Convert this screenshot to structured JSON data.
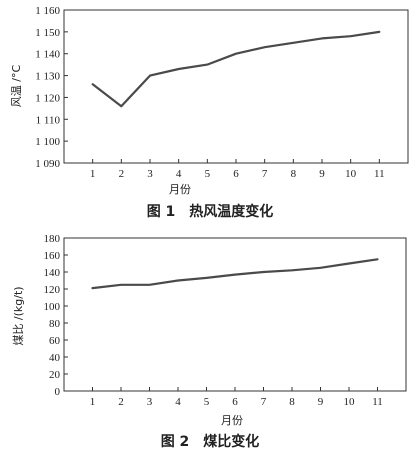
{
  "chart_data": [
    {
      "type": "line",
      "caption": "图 1　热风温度变化",
      "xlabel": "月份",
      "ylabel": "风温 /°C",
      "x": [
        1,
        2,
        3,
        4,
        5,
        6,
        7,
        8,
        9,
        10,
        11
      ],
      "x_ticks": [
        "1",
        "2",
        "3",
        "4",
        "5",
        "6",
        "7",
        "8",
        "9",
        "10",
        "11"
      ],
      "series": [
        {
          "values": [
            1126,
            1116,
            1130,
            1133,
            1135,
            1140,
            1143,
            1145,
            1147,
            1148,
            1150
          ]
        }
      ],
      "ylim": [
        1090,
        1160
      ],
      "y_ticks": [
        "1 090",
        "1 100",
        "1 110",
        "1 120",
        "1 130",
        "1 140",
        "1 150",
        "1 160"
      ],
      "y_tick_values": [
        1090,
        1100,
        1110,
        1120,
        1130,
        1140,
        1150,
        1160
      ],
      "grid": false,
      "line_color": "#4a4a4a",
      "frame_color": "#333333"
    },
    {
      "type": "line",
      "caption": "图 2　煤比变化",
      "xlabel": "月份",
      "ylabel": "煤比 /(kg/t)",
      "x": [
        1,
        2,
        3,
        4,
        5,
        6,
        7,
        8,
        9,
        10,
        11
      ],
      "x_ticks": [
        "1",
        "2",
        "3",
        "4",
        "5",
        "6",
        "7",
        "8",
        "9",
        "10",
        "11"
      ],
      "series": [
        {
          "values": [
            121,
            125,
            125,
            130,
            133,
            137,
            140,
            142,
            145,
            150,
            155
          ]
        }
      ],
      "ylim": [
        0,
        180
      ],
      "y_ticks": [
        "0",
        "20",
        "40",
        "60",
        "80",
        "100",
        "120",
        "140",
        "160",
        "180"
      ],
      "y_tick_values": [
        0,
        20,
        40,
        60,
        80,
        100,
        120,
        140,
        160,
        180
      ],
      "grid": false,
      "line_color": "#4a4a4a",
      "frame_color": "#333333"
    }
  ]
}
